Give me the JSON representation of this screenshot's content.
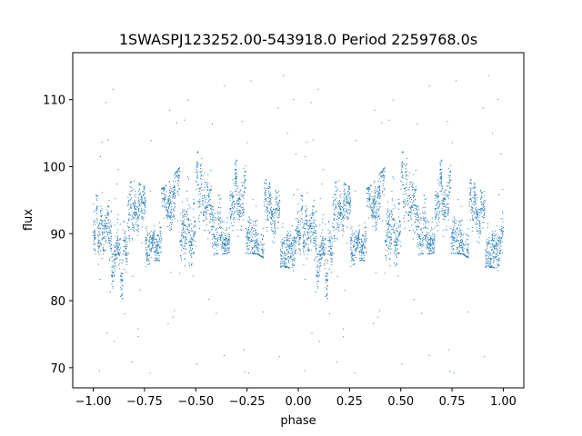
{
  "chart_data": {
    "type": "scatter",
    "title": "1SWASPJ123252.00-543918.0 Period 2259768.0s",
    "xlabel": "phase",
    "ylabel": "flux",
    "xlim": [
      -1.1,
      1.1
    ],
    "ylim": [
      67,
      117
    ],
    "x_ticks": [
      -1.0,
      -0.75,
      -0.5,
      -0.25,
      0.0,
      0.25,
      0.5,
      0.75,
      1.0
    ],
    "x_tick_labels": [
      "−1.00",
      "−0.75",
      "−0.50",
      "−0.25",
      "0.00",
      "0.25",
      "0.50",
      "0.75",
      "1.00"
    ],
    "y_ticks": [
      70,
      80,
      90,
      100,
      110
    ],
    "y_tick_labels": [
      "70",
      "80",
      "90",
      "100",
      "110"
    ],
    "grid": false,
    "marker_color": "#1f77b4",
    "series": [
      {
        "x_range": [
          -1.0,
          1.0
        ],
        "symmetry": "phase-folded, repeats with period 1.0",
        "profile": [
          {
            "phase": 0.0,
            "mean": 90.5,
            "low": 84,
            "high": 96
          },
          {
            "phase": 0.05,
            "mean": 87.0,
            "low": 81,
            "high": 95
          },
          {
            "phase": 0.1,
            "mean": 89.0,
            "low": 82,
            "high": 96
          },
          {
            "phase": 0.15,
            "mean": 88.5,
            "low": 80,
            "high": 97
          },
          {
            "phase": 0.2,
            "mean": 89.5,
            "low": 82,
            "high": 98
          },
          {
            "phase": 0.25,
            "mean": 91.0,
            "low": 85,
            "high": 97
          },
          {
            "phase": 0.3,
            "mean": 91.5,
            "low": 86,
            "high": 96
          },
          {
            "phase": 0.35,
            "mean": 92.0,
            "low": 86,
            "high": 97
          },
          {
            "phase": 0.4,
            "mean": 92.0,
            "low": 85,
            "high": 99
          },
          {
            "phase": 0.45,
            "mean": 93.0,
            "low": 83,
            "high": 101
          },
          {
            "phase": 0.5,
            "mean": 94.0,
            "low": 87,
            "high": 102
          },
          {
            "phase": 0.55,
            "mean": 93.0,
            "low": 86,
            "high": 103
          },
          {
            "phase": 0.6,
            "mean": 92.5,
            "low": 87,
            "high": 101
          },
          {
            "phase": 0.65,
            "mean": 92.5,
            "low": 87,
            "high": 98
          },
          {
            "phase": 0.7,
            "mean": 94.0,
            "low": 88,
            "high": 101
          },
          {
            "phase": 0.75,
            "mean": 93.5,
            "low": 87,
            "high": 100
          },
          {
            "phase": 0.8,
            "mean": 93.0,
            "low": 87,
            "high": 105
          },
          {
            "phase": 0.85,
            "mean": 92.0,
            "low": 86,
            "high": 98
          },
          {
            "phase": 0.9,
            "mean": 91.0,
            "low": 85,
            "high": 96
          },
          {
            "phase": 0.95,
            "mean": 91.5,
            "low": 85,
            "high": 99
          },
          {
            "phase": 1.0,
            "mean": 90.5,
            "low": 84,
            "high": 96
          }
        ],
        "outlier_range": [
          69,
          115
        ]
      }
    ]
  }
}
